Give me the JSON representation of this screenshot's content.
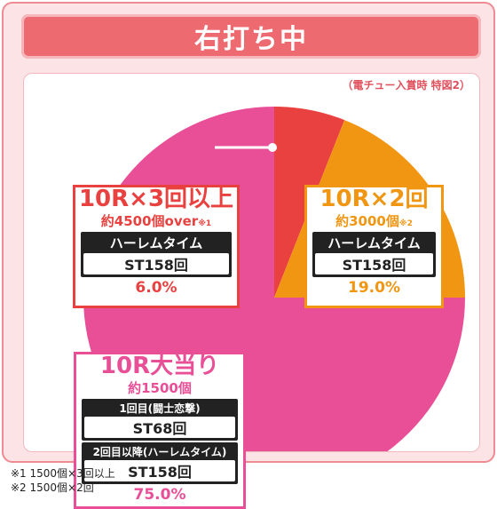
{
  "title": "右打ち中",
  "note": "（電チュー入賞時 特図2）",
  "colors": {
    "red": "#e8413f",
    "orange": "#f09613",
    "pink": "#e94f97"
  },
  "chart_data": {
    "type": "pie",
    "slices": [
      {
        "label": "10R×3回以上",
        "value": 6.0,
        "color": "#e8413f"
      },
      {
        "label": "10R×2回",
        "value": 19.0,
        "color": "#f09613"
      },
      {
        "label": "10R大当り",
        "value": 75.0,
        "color": "#e94f97"
      }
    ]
  },
  "boxes": {
    "b1": {
      "title": "10R×3回以上",
      "sub": "約4500個over",
      "mark": "※1",
      "mode": "ハーレムタイム",
      "st": "ST158回",
      "pct": "6.0%"
    },
    "b2": {
      "title": "10R×2回",
      "sub": "約3000個",
      "mark": "※2",
      "mode": "ハーレムタイム",
      "st": "ST158回",
      "pct": "19.0%"
    },
    "b3": {
      "title": "10R大当り",
      "sub": "約1500個",
      "mode1": "1回目(闘士恋撃)",
      "st1": "ST68回",
      "mode2": "2回目以降(ハーレムタイム)",
      "st2": "ST158回",
      "pct": "75.0%"
    }
  },
  "footnotes": [
    "※1 1500個×3回以上",
    "※2 1500個×2回"
  ]
}
